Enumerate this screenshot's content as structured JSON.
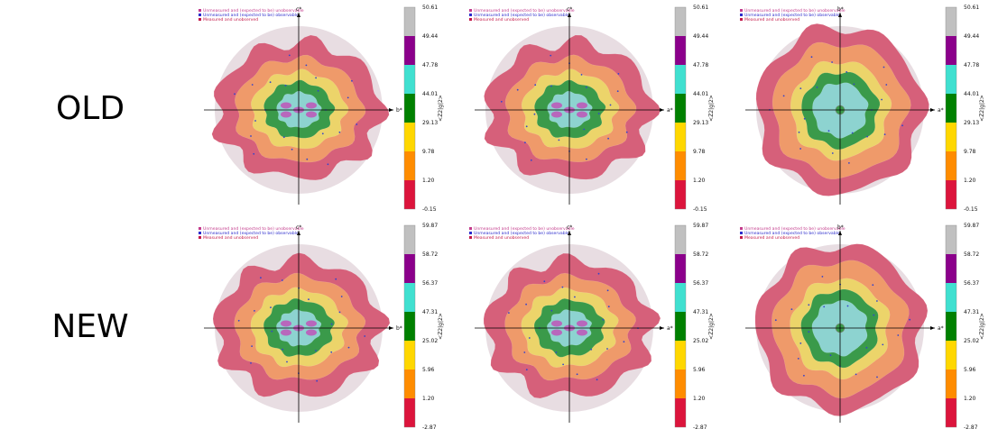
{
  "rows": [
    {
      "label": "OLD",
      "colorbar_ticks": [
        "50.61",
        "49.44",
        "47.78",
        "44.01",
        "29.13",
        "9.78",
        "1.20",
        "-0.15"
      ],
      "colorbar_title": "<Z2|g|2>"
    },
    {
      "label": "NEW",
      "colorbar_ticks": [
        "59.87",
        "58.72",
        "56.37",
        "47.31",
        "25.02",
        "5.96",
        "1.20",
        "-2.87"
      ],
      "colorbar_title": "<Z2|g|2>"
    }
  ],
  "legend": [
    {
      "text": "Unmeasured and (expected to be) unobservable",
      "color": "#c43c8c"
    },
    {
      "text": "Unmeasured and (expected to be) observable",
      "color": "#2c2ccc"
    },
    {
      "text": "Measured and unobserved",
      "color": "#c41a4a"
    }
  ],
  "band_colors": [
    "#dc143c",
    "#ff8c00",
    "#ffd700",
    "#008000",
    "#40e0d0",
    "#8b008b",
    "#c0c0c0"
  ],
  "chart_data": [
    {
      "type": "heatmap",
      "panel": "old-1",
      "axes": {
        "vertical": "c*",
        "horizontal": "b*"
      },
      "bands_from_center": [
        "#8dd3d0",
        "#3a9a4a",
        "#ecd46a",
        "#ef9a6a",
        "#d6607a",
        "#e8dde2"
      ],
      "ticks": [
        "50.61",
        "49.44",
        "47.78",
        "44.01",
        "29.13",
        "9.78",
        "1.20",
        "-0.15"
      ]
    },
    {
      "type": "heatmap",
      "panel": "old-2",
      "axes": {
        "vertical": "c*",
        "horizontal": "a*"
      },
      "bands_from_center": [
        "#8dd3d0",
        "#3a9a4a",
        "#ecd46a",
        "#ef9a6a",
        "#d6607a",
        "#e8dde2"
      ],
      "ticks": [
        "50.61",
        "49.44",
        "47.78",
        "44.01",
        "29.13",
        "9.78",
        "1.20",
        "-0.15"
      ]
    },
    {
      "type": "heatmap",
      "panel": "old-3",
      "axes": {
        "vertical": "b*",
        "horizontal": "a*"
      },
      "bands_from_center": [
        "#8dd3d0",
        "#3a9a4a",
        "#ecd46a",
        "#ef9a6a",
        "#d6607a",
        "#e8dde2"
      ],
      "ticks": [
        "50.61",
        "49.44",
        "47.78",
        "44.01",
        "29.13",
        "9.78",
        "1.20",
        "-0.15"
      ]
    },
    {
      "type": "heatmap",
      "panel": "new-1",
      "axes": {
        "vertical": "c*",
        "horizontal": "b*"
      },
      "bands_from_center": [
        "#8dd3d0",
        "#3a9a4a",
        "#ecd46a",
        "#ef9a6a",
        "#d6607a",
        "#e8dde2"
      ],
      "ticks": [
        "59.87",
        "58.72",
        "56.37",
        "47.31",
        "25.02",
        "5.96",
        "1.20",
        "-2.87"
      ]
    },
    {
      "type": "heatmap",
      "panel": "new-2",
      "axes": {
        "vertical": "c*",
        "horizontal": "a*"
      },
      "bands_from_center": [
        "#8dd3d0",
        "#3a9a4a",
        "#ecd46a",
        "#ef9a6a",
        "#d6607a",
        "#e8dde2"
      ],
      "ticks": [
        "59.87",
        "58.72",
        "56.37",
        "47.31",
        "25.02",
        "5.96",
        "1.20",
        "-2.87"
      ]
    },
    {
      "type": "heatmap",
      "panel": "new-3",
      "axes": {
        "vertical": "b*",
        "horizontal": "a*"
      },
      "bands_from_center": [
        "#8dd3d0",
        "#3a9a4a",
        "#ecd46a",
        "#ef9a6a",
        "#d6607a",
        "#e8dde2"
      ],
      "ticks": [
        "59.87",
        "58.72",
        "56.37",
        "47.31",
        "25.02",
        "5.96",
        "1.20",
        "-2.87"
      ]
    }
  ]
}
